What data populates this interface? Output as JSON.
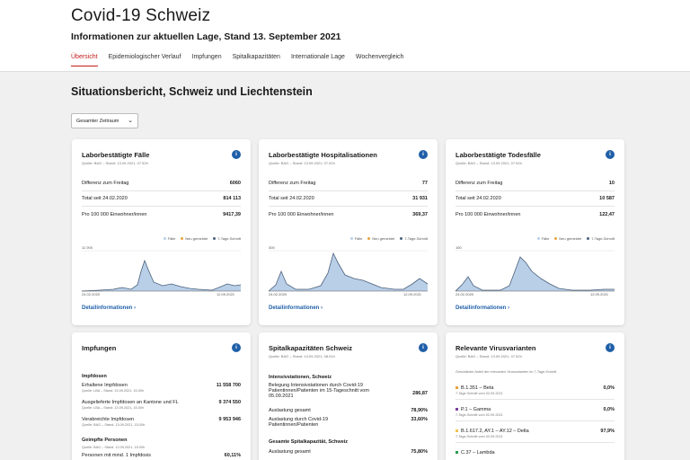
{
  "header": {
    "title": "Covid-19 Schweiz",
    "subtitle": "Informationen zur aktuellen Lage, Stand 13. September 2021",
    "tabs": [
      "Übersicht",
      "Epidemiologischer Verlauf",
      "Impfungen",
      "Spitalkapazitäten",
      "Internationale Lage",
      "Wochenvergleich"
    ]
  },
  "section": {
    "title": "Situationsbericht, Schweiz und Liechtenstein"
  },
  "range": {
    "label": "Gesamter Zeitraum"
  },
  "cards": [
    {
      "title": "Laborbestätigte Fälle",
      "source": "Quelle: BAG – Stand: 13.09.2021, 07.52h",
      "rows": [
        {
          "label": "Differenz zum Freitag",
          "value": "6060"
        },
        {
          "label": "Total seit 24.02.2020",
          "value": "814 113"
        },
        {
          "label": "Pro 100 000 Einwohner/innen",
          "value": "9417,39"
        }
      ],
      "legend": [
        "Fälle",
        "Neu gemeldet",
        "7-Tage-Schnitt"
      ],
      "ytick": "11 000",
      "x_start": "24.02.2020",
      "x_end": "12.09.2021",
      "link": "Detailinformationen"
    },
    {
      "title": "Laborbestätigte Hospitalisationen",
      "source": "Quelle: BAG – Stand: 13.09.2021, 07.52h",
      "rows": [
        {
          "label": "Differenz zum Freitag",
          "value": "77"
        },
        {
          "label": "Total seit 24.02.2020",
          "value": "31 931"
        },
        {
          "label": "Pro 100 000 Einwohner/innen",
          "value": "369,37"
        }
      ],
      "legend": [
        "Fälle",
        "Neu gemeldet",
        "7-Tage-Schnitt"
      ],
      "ytick": "300",
      "x_start": "24.02.2020",
      "x_end": "12.09.2021",
      "link": "Detailinformationen"
    },
    {
      "title": "Laborbestätigte Todesfälle",
      "source": "Quelle: BAG – Stand: 13.09.2021, 07.52h",
      "rows": [
        {
          "label": "Differenz zum Freitag",
          "value": "10"
        },
        {
          "label": "Total seit 24.02.2020",
          "value": "10 587"
        },
        {
          "label": "Pro 100 000 Einwohner/innen",
          "value": "122,47"
        }
      ],
      "legend": [
        "Fälle",
        "Neu gemeldet",
        "7-Tage-Schnitt"
      ],
      "ytick": "150",
      "x_start": "24.02.2020",
      "x_end": "12.09.2021",
      "link": "Detailinformationen"
    }
  ],
  "vacc": {
    "title": "Impfungen",
    "group1": "Impfdosen",
    "rows": [
      {
        "label": "Erhaltene Impfdosen",
        "source": "Quelle: LBA – Stand: 13.09.2021, 15.00h",
        "value": "11 558 700"
      },
      {
        "label": "Ausgelieferte Impfdosen an Kantone und FL",
        "source": "Quelle: LBA – Stand: 13.09.2021, 15.00h",
        "value": "9 374 550"
      },
      {
        "label": "Verabreichte Impfdosen",
        "source": "Quelle: BAG – Stand: 13.09.2021, 15.00h",
        "value": "9 953 946"
      }
    ],
    "group2": "Geimpfte Personen",
    "group2_source": "Quelle: BAG – Stand: 12.09.2021, 15.00h",
    "last_row": {
      "label": "Personen mit mind. 1 Impfdosis",
      "value": "60,11%"
    }
  },
  "hosp_cap": {
    "title": "Spitalkapazitäten Schweiz",
    "source": "Quelle: BAG – Stand: 13.09.2021, 08.01h",
    "group1": "Intensivstationen, Schweiz",
    "rows": [
      {
        "label": "Belegung Intensivstationen durch Covid-19 Patientinnen/Patienten im 15-Tageschnitt vom 05.09.2021",
        "value": "286,87"
      },
      {
        "label": "Auslastung gesamt",
        "value": "78,90%"
      },
      {
        "label": "Auslastung durch Covid-19 Patientinnen/Patienten",
        "value": "33,60%"
      }
    ],
    "group2": "Gesamte Spitalkapazität, Schweiz",
    "last_row": {
      "label": "Auslastung gesamt",
      "value": "75,80%"
    }
  },
  "variants": {
    "title": "Relevante Virusvarianten",
    "source": "Quelle: BAG – Stand: 13.09.2021, 07.52h",
    "note": "Geschätzter Anteil der relevanten Virusvarianten im 7-Tage-Schnitt.",
    "rows": [
      {
        "label": "B.1.351 – Beta",
        "sub": "7-Tage-Schnitt vom 02.09.2021",
        "value": "0,0%",
        "color": "#e8a33d"
      },
      {
        "label": "P.1 – Gamma",
        "sub": "7-Tage-Schnitt vom 02.09.2021",
        "value": "0,0%",
        "color": "#7b3fa0"
      },
      {
        "label": "B.1.617.2, AY.1 – AY.12 – Delta",
        "sub": "7-Tage-Schnitt vom 02.09.2021",
        "value": "97,9%",
        "color": "#f2c14e"
      },
      {
        "label": "C.37 – Lambda",
        "sub": "",
        "value": "",
        "color": "#2a9d4f"
      }
    ]
  },
  "colors": {
    "accent": "#c51b1b",
    "link": "#1f5fa8",
    "area": "#b9cfe8",
    "line": "#4a5f7a"
  }
}
